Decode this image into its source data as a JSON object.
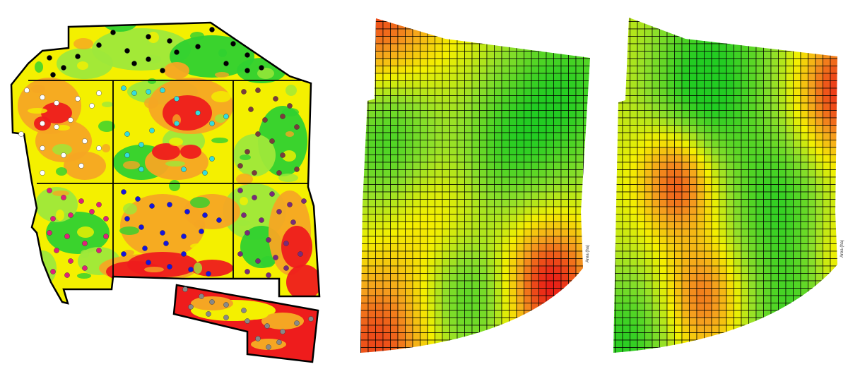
{
  "colors": {
    "red": "#ee1c1c",
    "orange": "#f5a623",
    "yellow": "#f4f000",
    "light_green": "#9ee83a",
    "green": "#2fd12f",
    "outline": "#000000"
  },
  "field_map": {
    "sample_point_groups": [
      {
        "name": "group-black",
        "color": "#000000"
      },
      {
        "name": "group-white",
        "color": "#ffffff"
      },
      {
        "name": "group-cyan",
        "color": "#33dddd"
      },
      {
        "name": "group-brown",
        "color": "#7a3b3b"
      },
      {
        "name": "group-magenta",
        "color": "#e0207a"
      },
      {
        "name": "group-blue",
        "color": "#1515dd"
      },
      {
        "name": "group-purple",
        "color": "#7a2a7a"
      },
      {
        "name": "group-gray",
        "color": "#888888"
      }
    ]
  },
  "grid_map_a": {
    "legend_label": "Area (ha)"
  },
  "grid_map_b": {
    "legend_label": "Area (ha)"
  }
}
